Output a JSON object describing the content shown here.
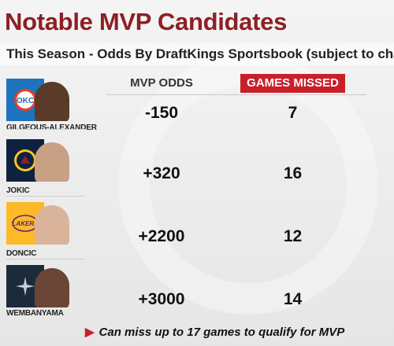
{
  "title": "Notable MVP Candidates",
  "subtitle": "This Season - Odds By DraftKings Sportsbook (subject to chan",
  "columns": {
    "odds": "MVP ODDS",
    "games_missed": "GAMES MISSED"
  },
  "candidates": [
    {
      "name": "GILGEOUS-ALEXANDER",
      "odds": "-150",
      "games_missed": "7",
      "team_color": "#1d73be",
      "icon": "okc-thunder-logo-icon"
    },
    {
      "name": "JOKIC",
      "odds": "+320",
      "games_missed": "16",
      "team_color": "#0e2240",
      "icon": "denver-nuggets-logo-icon"
    },
    {
      "name": "DONCIC",
      "odds": "+2200",
      "games_missed": "12",
      "team_color": "#fdb927",
      "icon": "lakers-logo-icon"
    },
    {
      "name": "WEMBANYAMA",
      "odds": "+3000",
      "games_missed": "14",
      "team_color": "#1c2b3a",
      "icon": "spurs-logo-icon"
    }
  ],
  "footnote": "Can miss up to 17 games to qualify for MVP",
  "colors": {
    "title": "#8e1f24",
    "accent": "#c8202a"
  }
}
